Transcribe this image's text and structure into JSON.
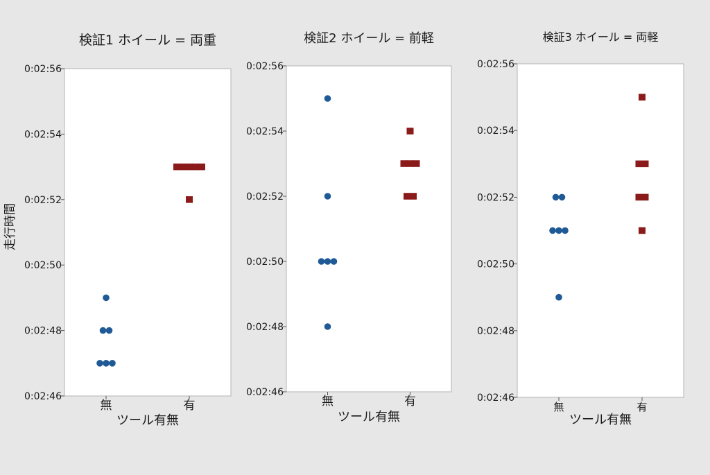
{
  "figure": {
    "ylabel": "走行時間"
  },
  "chart_data": [
    {
      "type": "scatter",
      "title": "検証1 ホイール = 両重",
      "xlabel": "ツール有無",
      "ylabel": "走行時間",
      "categories": [
        "無",
        "有"
      ],
      "ylim": [
        "0:02:46",
        "0:02:56"
      ],
      "yticks": [
        "0:02:46",
        "0:02:48",
        "0:02:50",
        "0:02:52",
        "0:02:54",
        "0:02:56"
      ],
      "series": [
        {
          "category": "無",
          "marker": "circle",
          "color": "#1f5a96",
          "values": [
            "0:02:49",
            "0:02:48",
            "0:02:48",
            "0:02:47",
            "0:02:47",
            "0:02:47"
          ]
        },
        {
          "category": "有",
          "marker": "square",
          "color": "#8b1a1a",
          "values": [
            "0:02:53",
            "0:02:53",
            "0:02:53",
            "0:02:53",
            "0:02:53",
            "0:02:52"
          ]
        }
      ]
    },
    {
      "type": "scatter",
      "title": "検証2 ホイール = 前軽",
      "xlabel": "ツール有無",
      "categories": [
        "無",
        "有"
      ],
      "ylim": [
        "0:02:46",
        "0:02:56"
      ],
      "yticks": [
        "0:02:46",
        "0:02:48",
        "0:02:50",
        "0:02:52",
        "0:02:54",
        "0:02:56"
      ],
      "series": [
        {
          "category": "無",
          "marker": "circle",
          "color": "#1f5a96",
          "values": [
            "0:02:55",
            "0:02:52",
            "0:02:50",
            "0:02:50",
            "0:02:50",
            "0:02:48"
          ]
        },
        {
          "category": "有",
          "marker": "square",
          "color": "#8b1a1a",
          "values": [
            "0:02:54",
            "0:02:53",
            "0:02:53",
            "0:02:53",
            "0:02:52",
            "0:02:52"
          ]
        }
      ]
    },
    {
      "type": "scatter",
      "title": "検証3 ホイール = 両軽",
      "xlabel": "ツール有無",
      "categories": [
        "無",
        "有"
      ],
      "ylim": [
        "0:02:46",
        "0:02:56"
      ],
      "yticks": [
        "0:02:46",
        "0:02:48",
        "0:02:50",
        "0:02:52",
        "0:02:54",
        "0:02:56"
      ],
      "series": [
        {
          "category": "無",
          "marker": "circle",
          "color": "#1f5a96",
          "values": [
            "0:02:52",
            "0:02:52",
            "0:02:51",
            "0:02:51",
            "0:02:51",
            "0:02:49"
          ]
        },
        {
          "category": "有",
          "marker": "square",
          "color": "#8b1a1a",
          "values": [
            "0:02:55",
            "0:02:53",
            "0:02:53",
            "0:02:52",
            "0:02:52",
            "0:02:51"
          ]
        }
      ]
    }
  ]
}
